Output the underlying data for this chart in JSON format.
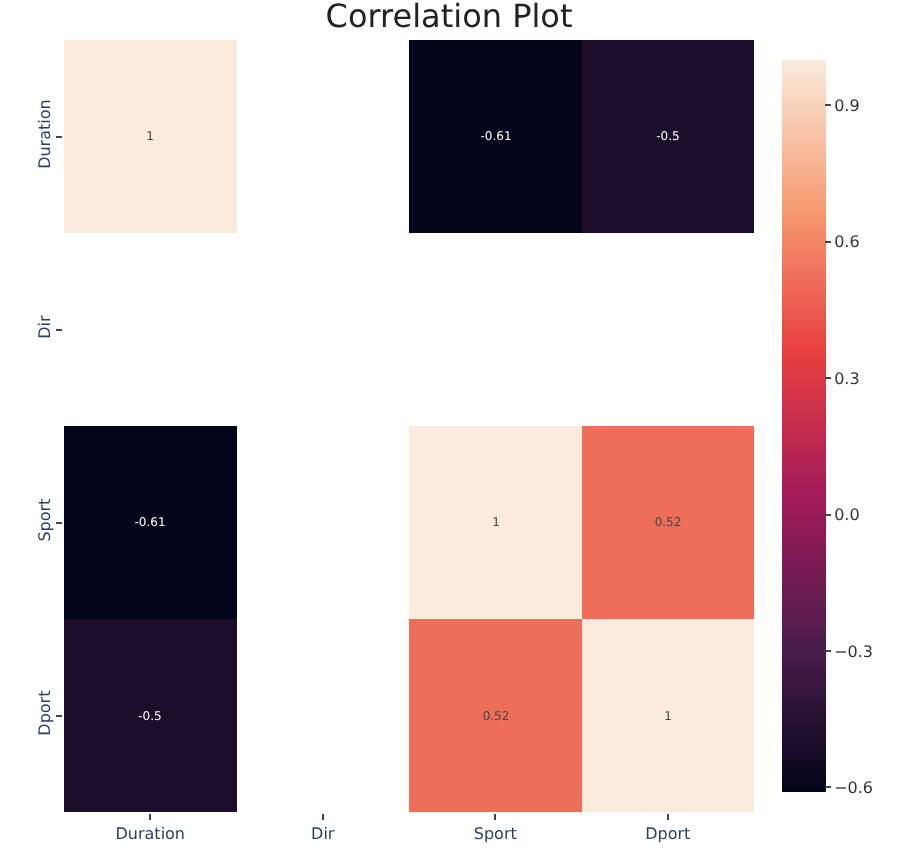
{
  "chart_data": {
    "type": "heatmap",
    "title": "Correlation Plot",
    "categories": [
      "Duration",
      "Dir",
      "Sport",
      "Dport"
    ],
    "y_categories": [
      "Duration",
      "Dir",
      "Sport",
      "Dport"
    ],
    "cells": [
      [
        1,
        null,
        -0.61,
        -0.5
      ],
      [
        null,
        null,
        null,
        null
      ],
      [
        -0.61,
        null,
        1,
        0.52
      ],
      [
        -0.5,
        null,
        0.52,
        1
      ]
    ],
    "data_labels": true,
    "clim": [
      -0.61,
      1
    ],
    "cticks": [
      0.9,
      0.6,
      0.3,
      {
        "value": 0,
        "label": "0.0"
      },
      {
        "value": -0.3,
        "label": "−0.3"
      },
      {
        "value": -0.6,
        "label": "−0.6"
      }
    ]
  }
}
